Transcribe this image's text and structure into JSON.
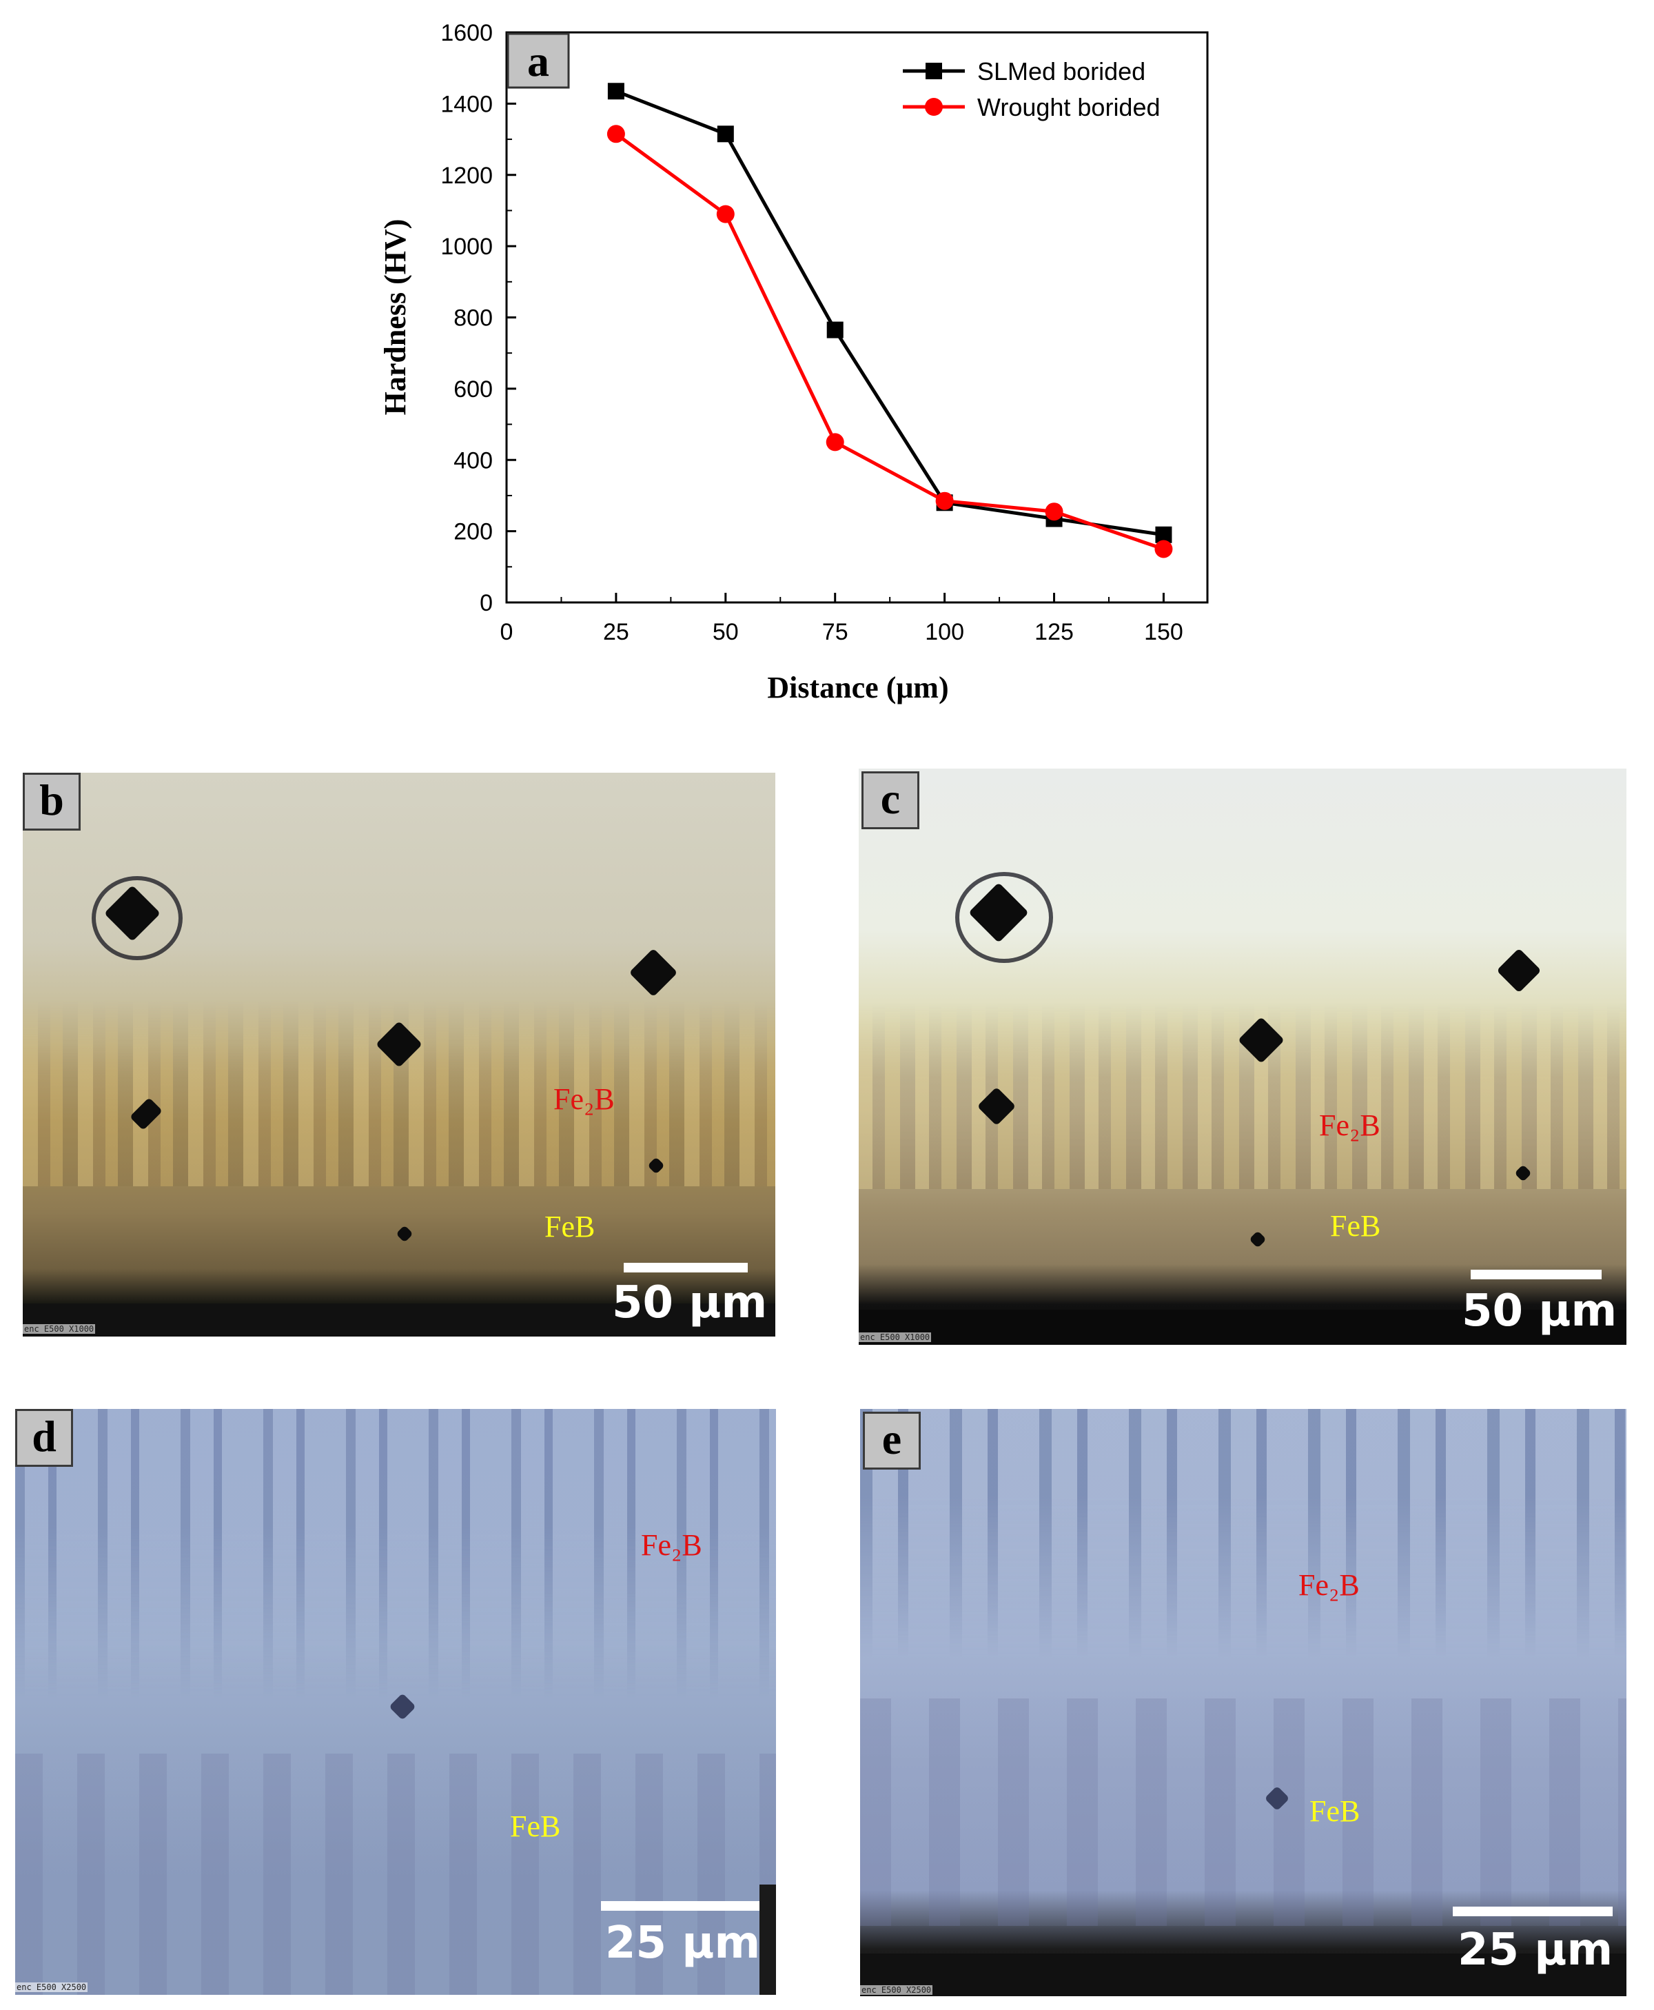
{
  "chart_data": {
    "type": "line",
    "panel_label": "a",
    "xlabel": "Distance (μm)",
    "ylabel": "Hardness (HV)",
    "xlim": [
      0,
      160
    ],
    "ylim": [
      0,
      1600
    ],
    "x_ticks": [
      0,
      25,
      50,
      75,
      100,
      125,
      150
    ],
    "y_ticks": [
      0,
      200,
      400,
      600,
      800,
      1000,
      1200,
      1400,
      1600
    ],
    "legend_position": "top-right",
    "series": [
      {
        "name": "SLMed borided",
        "color": "#000000",
        "marker": "square",
        "x": [
          25,
          50,
          75,
          100,
          125,
          150
        ],
        "y": [
          1435,
          1315,
          765,
          280,
          235,
          190
        ]
      },
      {
        "name": "Wrought borided",
        "color": "#ff0000",
        "marker": "circle",
        "x": [
          25,
          50,
          75,
          100,
          125,
          150
        ],
        "y": [
          1315,
          1090,
          450,
          285,
          255,
          150
        ]
      }
    ]
  },
  "micrographs": [
    {
      "label": "b",
      "phase_1": "Fe₂B",
      "phase_2": "FeB",
      "scale": "50 μm",
      "footer": "enc E500 X1000"
    },
    {
      "label": "c",
      "phase_1": "Fe₂B",
      "phase_2": "FeB",
      "scale": "50 μm",
      "footer": "enc E500 X1000"
    },
    {
      "label": "d",
      "phase_1": "Fe₂B",
      "phase_2": "FeB",
      "scale": "25 μm",
      "footer": "enc E500 X2500"
    },
    {
      "label": "e",
      "phase_1": "Fe₂B",
      "phase_2": "FeB",
      "scale": "25 μm",
      "footer": "enc E500 X2500"
    }
  ]
}
